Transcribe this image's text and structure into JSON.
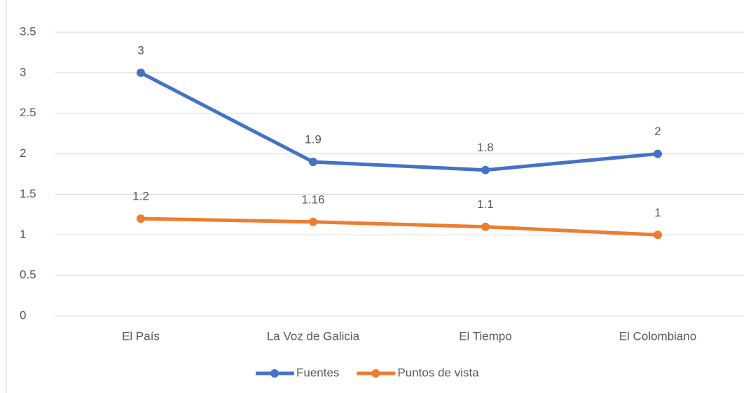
{
  "chart_data": {
    "type": "line",
    "categories": [
      "El País",
      "La Voz de Galicia",
      "El Tiempo",
      "El Colombiano"
    ],
    "series": [
      {
        "name": "Fuentes",
        "color": "#4472c4",
        "values": [
          3,
          1.9,
          1.8,
          2
        ]
      },
      {
        "name": "Puntos de vista",
        "color": "#ed7d31",
        "values": [
          1.2,
          1.16,
          1.1,
          1
        ]
      }
    ],
    "ylim": [
      0,
      3.5
    ],
    "yticks": [
      0,
      0.5,
      1,
      1.5,
      2,
      2.5,
      3,
      3.5
    ],
    "grid": true,
    "legend": "bottom"
  }
}
